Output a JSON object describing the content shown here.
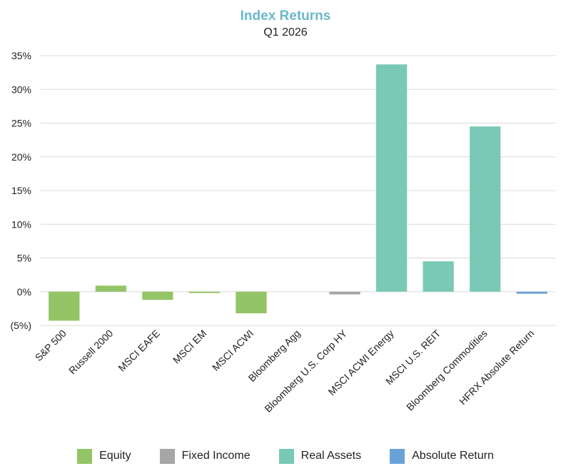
{
  "chart_data": {
    "type": "bar",
    "title": "Index Returns",
    "subtitle": "Q1 2026",
    "xlabel": "",
    "ylabel": "",
    "ylim": [
      -5,
      35
    ],
    "y_ticks": [
      35,
      30,
      25,
      20,
      15,
      10,
      5,
      0,
      -5
    ],
    "y_tick_labels": [
      "35%",
      "30%",
      "25%",
      "20%",
      "15%",
      "10%",
      "5%",
      "0%",
      "(5%)"
    ],
    "grid": true,
    "categories": [
      "S&P 500",
      "Russell 2000",
      "MSCI EAFE",
      "MSCI EM",
      "MSCI ACWI",
      "Bloomberg Agg",
      "Bloomberg U.S. Corp HY",
      "MSCI ACWI Energy",
      "MSCI U.S. REIT",
      "Bloomberg Commodities",
      "HFRX Absolute Return"
    ],
    "values": [
      -4.3,
      0.9,
      -1.2,
      -0.2,
      -3.2,
      0.0,
      -0.4,
      33.7,
      4.5,
      24.5,
      -0.3
    ],
    "groups": [
      "Equity",
      "Equity",
      "Equity",
      "Equity",
      "Equity",
      "Fixed Income",
      "Fixed Income",
      "Real Assets",
      "Real Assets",
      "Real Assets",
      "Absolute Return"
    ],
    "legend": [
      {
        "name": "Equity",
        "color": "#93c466"
      },
      {
        "name": "Fixed Income",
        "color": "#a6a6a6"
      },
      {
        "name": "Real Assets",
        "color": "#78c9b6"
      },
      {
        "name": "Absolute Return",
        "color": "#6aa2d8"
      }
    ],
    "legend_position": "bottom"
  }
}
